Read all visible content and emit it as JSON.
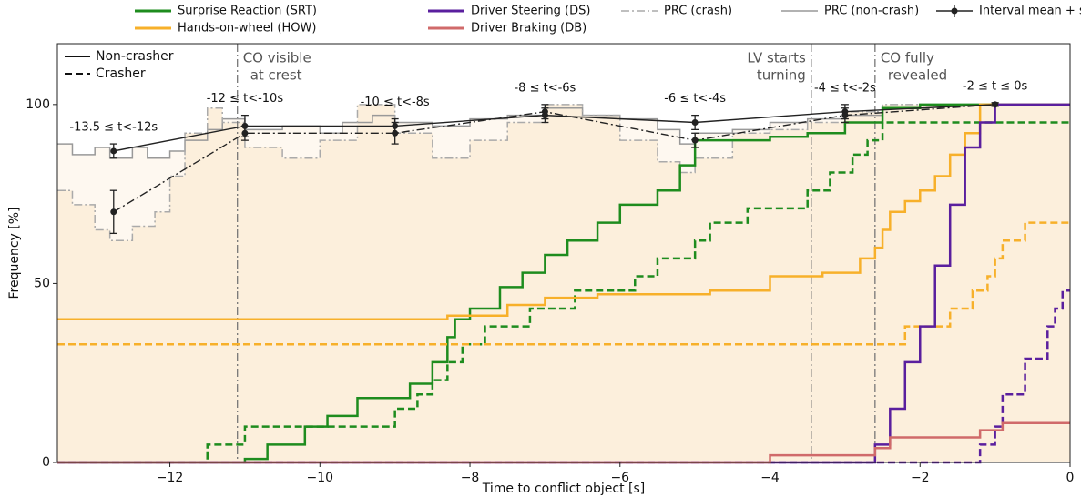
{
  "chart_data": {
    "type": "step",
    "xlabel": "Time to conflict object [s]",
    "ylabel": "Frequency [%]",
    "xlim": [
      -13.5,
      0
    ],
    "ylim": [
      0,
      117
    ],
    "xticks": [
      {
        "value": -12,
        "label": "−12"
      },
      {
        "value": -10,
        "label": "−10"
      },
      {
        "value": -8,
        "label": "−8"
      },
      {
        "value": -6,
        "label": "−6"
      },
      {
        "value": -4,
        "label": "−4"
      },
      {
        "value": -2,
        "label": "−2"
      },
      0
    ],
    "yticks": [
      0,
      50,
      100
    ],
    "style_legend": [
      {
        "label": "Non-crasher",
        "style": "solid"
      },
      {
        "label": "Crasher",
        "style": "dashed"
      }
    ],
    "prc": [
      {
        "name": "PRC (non-crash)",
        "color": "#999999",
        "style": "solid",
        "fill": "#fef8f0",
        "x": [
          -13.5,
          -13.3,
          -13.0,
          -12.8,
          -12.5,
          -12.3,
          -12.0,
          -11.8,
          -11.5,
          -11.3,
          -11.0,
          -10.5,
          -10.0,
          -9.7,
          -9.3,
          -9.0,
          -8.5,
          -8.0,
          -7.5,
          -7.0,
          -6.5,
          -6.0,
          -5.5,
          -5.2,
          -5.0,
          -4.5,
          -4.0,
          -3.5,
          -3.0,
          -2.5,
          -2.0
        ],
        "values": [
          89,
          86,
          88,
          85,
          88,
          85,
          87,
          90,
          93,
          96,
          93,
          94,
          92,
          95,
          97,
          95,
          94,
          96,
          97,
          99,
          97,
          96,
          93,
          89,
          92,
          93,
          95,
          96,
          97,
          99,
          100
        ]
      },
      {
        "name": "PRC (crash)",
        "color": "#aaaaaa",
        "style": "dashdot",
        "fill": "#fcefdc",
        "x": [
          -13.5,
          -13.3,
          -13.0,
          -12.8,
          -12.5,
          -12.2,
          -12.0,
          -11.8,
          -11.5,
          -11.3,
          -11.0,
          -10.5,
          -10.0,
          -9.5,
          -9.0,
          -8.5,
          -8.0,
          -7.5,
          -7.0,
          -6.5,
          -6.0,
          -5.5,
          -5.2,
          -5.0,
          -4.5,
          -4.0,
          -3.5,
          -3.0,
          -2.5
        ],
        "values": [
          76,
          72,
          65,
          62,
          66,
          70,
          80,
          92,
          99,
          95,
          88,
          85,
          90,
          100,
          92,
          85,
          90,
          95,
          100,
          97,
          90,
          84,
          81,
          85,
          92,
          93,
          95,
          98,
          100
        ]
      }
    ],
    "series": [
      {
        "name": "Surprise Reaction (SRT)",
        "color": "#1e8c1e",
        "lines": [
          {
            "style": "solid",
            "x": [
              -13.5,
              -11.0,
              -10.7,
              -10.2,
              -9.9,
              -9.5,
              -8.8,
              -8.5,
              -8.3,
              -8.2,
              -8.0,
              -7.6,
              -7.3,
              -7.0,
              -6.7,
              -6.3,
              -6.0,
              -5.5,
              -5.2,
              -5.0,
              -4.0,
              -3.5,
              -3.0,
              -2.5,
              -2.0
            ],
            "values": [
              0,
              1,
              5,
              10,
              13,
              18,
              22,
              28,
              35,
              40,
              43,
              49,
              53,
              58,
              62,
              67,
              72,
              76,
              83,
              90,
              91,
              92,
              95,
              99,
              100
            ]
          },
          {
            "style": "dashed",
            "x": [
              -13.5,
              -11.5,
              -11.0,
              -9.0,
              -8.7,
              -8.5,
              -8.3,
              -8.1,
              -7.8,
              -7.2,
              -6.6,
              -5.8,
              -5.5,
              -5.0,
              -4.8,
              -4.3,
              -3.5,
              -3.2,
              -2.9,
              -2.7,
              -2.5
            ],
            "values": [
              0,
              5,
              10,
              15,
              19,
              23,
              28,
              33,
              38,
              43,
              48,
              52,
              57,
              62,
              67,
              71,
              76,
              81,
              86,
              90,
              95
            ]
          }
        ]
      },
      {
        "name": "Hands-on-wheel (HOW)",
        "color": "#f7b02a",
        "lines": [
          {
            "style": "solid",
            "x": [
              -13.5,
              -8.3,
              -7.5,
              -7.0,
              -6.3,
              -4.8,
              -4.0,
              -3.3,
              -2.8,
              -2.6,
              -2.5,
              -2.4,
              -2.2,
              -2.0,
              -1.8,
              -1.6,
              -1.4,
              -1.2
            ],
            "values": [
              40,
              41,
              44,
              46,
              47,
              48,
              52,
              53,
              57,
              60,
              65,
              70,
              73,
              76,
              80,
              86,
              92,
              100
            ]
          },
          {
            "style": "dashed",
            "x": [
              -13.5,
              -2.2,
              -1.6,
              -1.3,
              -1.1,
              -1.0,
              -0.9,
              -0.6
            ],
            "values": [
              33,
              38,
              43,
              48,
              52,
              57,
              62,
              67
            ]
          }
        ]
      },
      {
        "name": "Driver Steering (DS)",
        "color": "#5a1f9e",
        "lines": [
          {
            "style": "solid",
            "x": [
              -13.5,
              -2.8,
              -2.6,
              -2.4,
              -2.2,
              -2.0,
              -1.8,
              -1.6,
              -1.4,
              -1.2,
              -1.0
            ],
            "values": [
              0,
              0,
              5,
              15,
              28,
              38,
              55,
              72,
              88,
              95,
              100
            ]
          },
          {
            "style": "dashed",
            "x": [
              -13.5,
              -1.2,
              -1.0,
              -0.9,
              -0.6,
              -0.3,
              -0.2,
              -0.1
            ],
            "values": [
              0,
              5,
              10,
              19,
              29,
              38,
              43,
              48
            ]
          }
        ]
      },
      {
        "name": "Driver Braking (DB)",
        "color": "#d06a6a",
        "lines": [
          {
            "style": "solid",
            "x": [
              -13.5,
              -4.0,
              -2.6,
              -2.4,
              -1.2,
              -0.9
            ],
            "values": [
              0,
              2,
              4,
              7,
              9,
              11
            ]
          }
        ]
      }
    ],
    "interval_stats": {
      "name": "Interval mean + std",
      "color": "#222222",
      "labels": [
        "-13.5 ≤ t<-12s",
        "-12 ≤ t<-10s",
        "-10 ≤ t<-8s",
        "-8 ≤ t<-6s",
        "-6 ≤ t<-4s",
        "-4 ≤ t<-2s",
        "-2 ≤ t ≤ 0s"
      ],
      "x": [
        -12.75,
        -11.0,
        -9.0,
        -7.0,
        -5.0,
        -3.0,
        -1.0
      ],
      "non_crash": {
        "style": "solid",
        "values": [
          87,
          94,
          94,
          97,
          95,
          98,
          100
        ],
        "errors": [
          2,
          3,
          2,
          2,
          2,
          2,
          0.5
        ]
      },
      "crash": {
        "style": "dashdot",
        "values": [
          70,
          92,
          92,
          98,
          90,
          97,
          100
        ],
        "errors": [
          6,
          2,
          3,
          2,
          2,
          2,
          0.5
        ]
      }
    },
    "events": [
      {
        "x": -11.1,
        "label": [
          "CO visible",
          "at crest"
        ],
        "label_side": "right"
      },
      {
        "x": -3.45,
        "label": [
          "LV starts",
          "turning"
        ],
        "label_side": "left"
      },
      {
        "x": -2.6,
        "label": [
          "CO fully",
          "revealed"
        ],
        "label_side": "right"
      }
    ]
  }
}
